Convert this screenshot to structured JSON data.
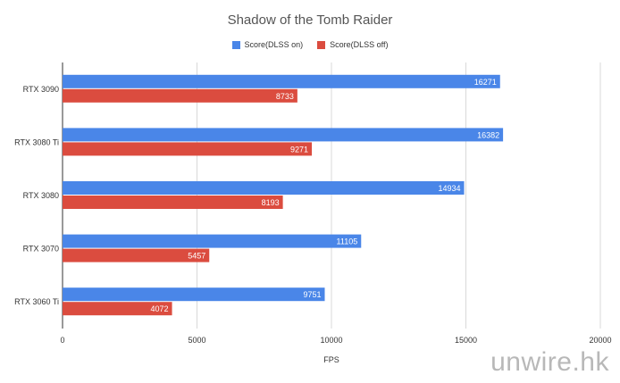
{
  "watermark": "unwire.hk",
  "chart_data": {
    "type": "bar",
    "orientation": "horizontal",
    "title": "Shadow of the Tomb Raider",
    "xlabel": "FPS",
    "ylabel": "",
    "categories": [
      "RTX 3090",
      "RTX 3080 Ti",
      "RTX 3080",
      "RTX 3070",
      "RTX 3060 Ti"
    ],
    "series": [
      {
        "name": "Score(DLSS on)",
        "color": "#4a86e8",
        "values": [
          16271,
          16382,
          14934,
          11105,
          9751
        ]
      },
      {
        "name": "Score(DLSS off)",
        "color": "#db4c3f",
        "values": [
          8733,
          9271,
          8193,
          5457,
          4072
        ]
      }
    ],
    "xlim": [
      0,
      20000
    ],
    "xticks": [
      "0",
      "5000",
      "10000",
      "15000",
      "20000"
    ],
    "grid": true,
    "legend_position": "top"
  }
}
